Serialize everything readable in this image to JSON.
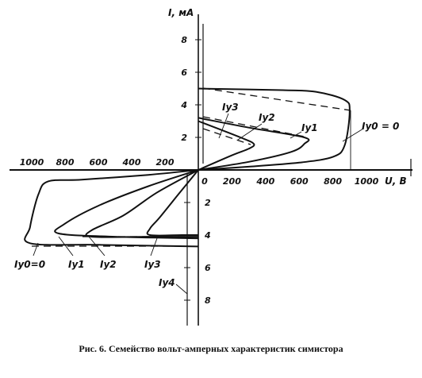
{
  "caption": "Рис. 6. Семейство вольт-амперных характеристик симистора",
  "chart_data": {
    "type": "line",
    "title": "",
    "xlabel": "U, В",
    "ylabel": "I, мА",
    "xlim": [
      -1000,
      1000
    ],
    "ylim": [
      -8,
      8
    ],
    "x_tick_labels": {
      "positive": [
        "0",
        "200",
        "400",
        "600",
        "800",
        "1000"
      ],
      "negative": [
        "1000",
        "800",
        "600",
        "400",
        "200"
      ]
    },
    "y_tick_labels": {
      "positive": [
        "2",
        "4",
        "6",
        "8"
      ],
      "negative": [
        "2",
        "4",
        "6",
        "8"
      ]
    },
    "series": [
      {
        "name": "Iy0=0",
        "points": [
          [
            0,
            0
          ],
          [
            300,
            0.2
          ],
          [
            600,
            0.45
          ],
          [
            800,
            0.8
          ],
          [
            870,
            1.5
          ],
          [
            900,
            3.6
          ],
          [
            870,
            4.3
          ],
          [
            700,
            4.8
          ],
          [
            500,
            4.9
          ],
          [
            0,
            5.0
          ]
        ],
        "negative_points": [
          [
            0,
            0
          ],
          [
            -300,
            -0.3
          ],
          [
            -700,
            -0.6
          ],
          [
            -900,
            -0.7
          ],
          [
            -960,
            -1.5
          ],
          [
            -1010,
            -3.5
          ],
          [
            -1010,
            -4.5
          ],
          [
            -600,
            -4.6
          ],
          [
            0,
            -4.7
          ]
        ]
      },
      {
        "name": "Iy1",
        "points": [
          [
            0,
            0
          ],
          [
            300,
            0.5
          ],
          [
            550,
            1.1
          ],
          [
            630,
            1.6
          ],
          [
            630,
            2.0
          ],
          [
            300,
            2.6
          ],
          [
            0,
            3.2
          ]
        ],
        "negative_points": [
          [
            0,
            0
          ],
          [
            -300,
            -1.0
          ],
          [
            -600,
            -2.2
          ],
          [
            -800,
            -3.3
          ],
          [
            -840,
            -3.9
          ],
          [
            -500,
            -4.1
          ],
          [
            0,
            -4.2
          ]
        ]
      },
      {
        "name": "Iy2",
        "points": [
          [
            0,
            0
          ],
          [
            200,
            0.9
          ],
          [
            300,
            1.3
          ],
          [
            330,
            1.6
          ],
          [
            250,
            2.0
          ],
          [
            0,
            3.0
          ]
        ],
        "negative_points": [
          [
            0,
            0
          ],
          [
            -250,
            -1.4
          ],
          [
            -450,
            -2.8
          ],
          [
            -640,
            -3.7
          ],
          [
            -640,
            -4.1
          ],
          [
            -300,
            -4.1
          ],
          [
            0,
            -4.1
          ]
        ]
      },
      {
        "name": "Iy3",
        "points": [],
        "negative_points": [
          [
            0,
            0
          ],
          [
            -120,
            -1.5
          ],
          [
            -230,
            -2.9
          ],
          [
            -290,
            -3.6
          ],
          [
            -290,
            -4.0
          ],
          [
            -100,
            -4.0
          ],
          [
            0,
            -4.0
          ]
        ]
      },
      {
        "name": "Iy4",
        "points": [],
        "negative_points": []
      }
    ],
    "annotations": [
      {
        "text": "Iy3"
      },
      {
        "text": "Iy2"
      },
      {
        "text": "Iy1"
      },
      {
        "text": "Iy0 = 0"
      },
      {
        "text": "Iy0=0"
      },
      {
        "text": "Iy1"
      },
      {
        "text": "Iy2"
      },
      {
        "text": "Iy3"
      },
      {
        "text": "Iy4"
      }
    ],
    "grid": false,
    "legend": "none"
  }
}
